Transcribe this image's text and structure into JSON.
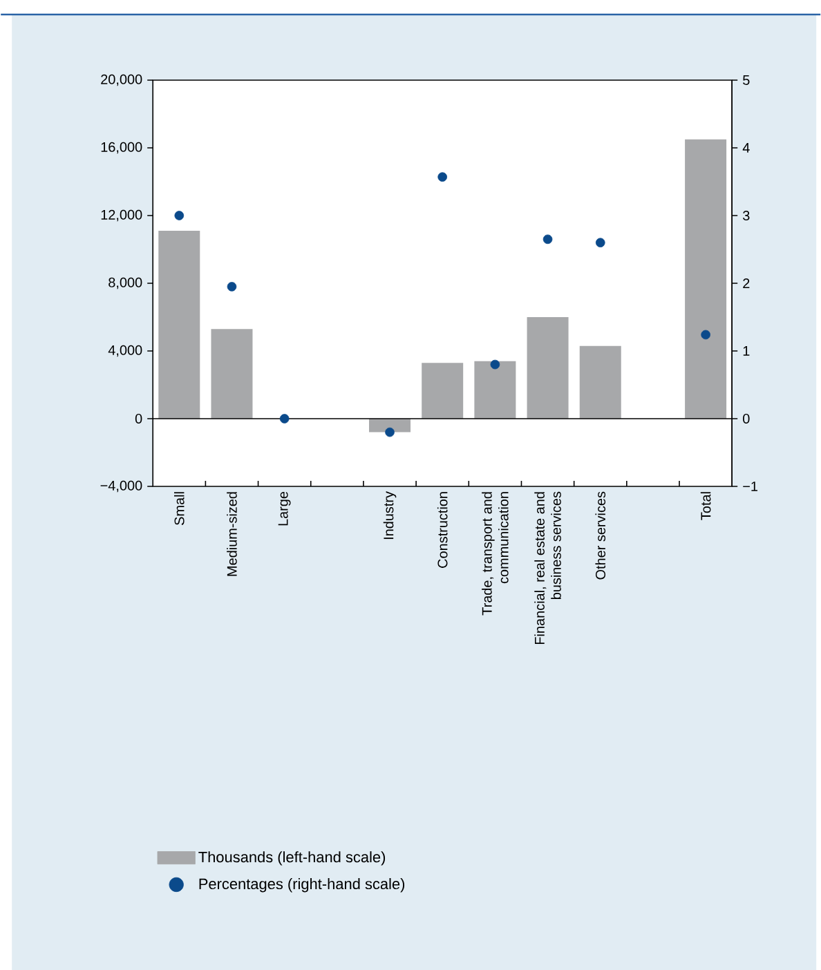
{
  "chart_data": {
    "type": "bar",
    "categories": [
      "Small",
      "Medium-sized",
      "Large",
      null,
      "Industry",
      "Construction",
      "Trade, transport and communication",
      "Financial, real estate and business services",
      "Other services",
      null,
      "Total"
    ],
    "series": [
      {
        "name": "Thousands (left-hand scale)",
        "color": "#a7a8aa",
        "values": [
          11100,
          5300,
          0,
          null,
          -800,
          3300,
          3400,
          6000,
          4300,
          null,
          16500
        ]
      },
      {
        "name": "Percentages (right-hand scale)",
        "type": "scatter",
        "axis": "y2",
        "color": "#0b4a8b",
        "values": [
          3.0,
          1.95,
          0,
          null,
          -0.2,
          3.57,
          0.8,
          2.65,
          2.6,
          null,
          1.24
        ]
      }
    ],
    "ylim": [
      -4000,
      20000
    ],
    "yticks": [
      {
        "value": -4000,
        "label": "−4,000"
      },
      0,
      {
        "value": 4000,
        "label": "4,000"
      },
      {
        "value": 8000,
        "label": "8,000"
      },
      {
        "value": 12000,
        "label": "12,000"
      },
      {
        "value": 16000,
        "label": "16,000"
      },
      {
        "value": 20000,
        "label": "20,000"
      }
    ],
    "y2lim": [
      -1,
      5
    ],
    "y2ticks": [
      {
        "value": -1,
        "label": "−1"
      },
      0,
      1,
      2,
      3,
      4,
      5
    ],
    "legend": "bottom"
  }
}
